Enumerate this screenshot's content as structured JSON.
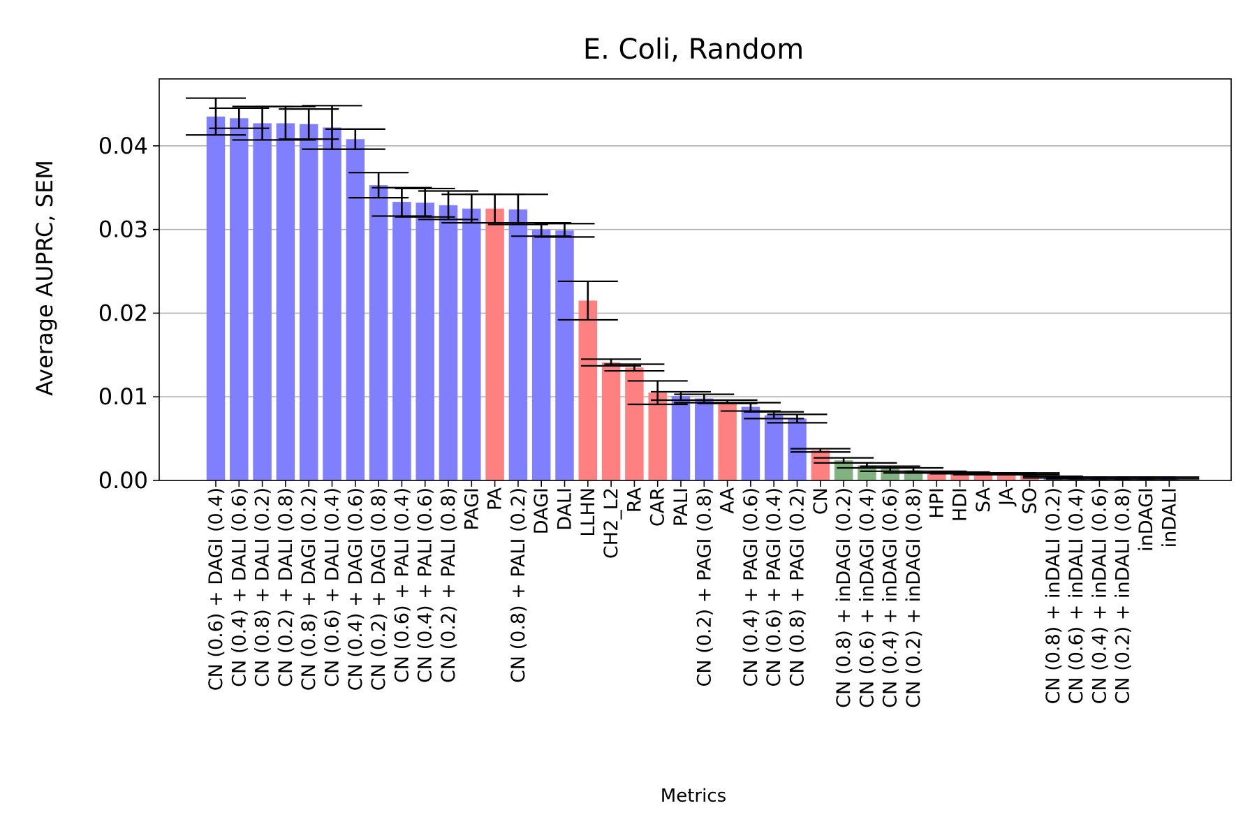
{
  "chart_data": {
    "type": "bar",
    "title": "E. Coli, Random",
    "xlabel": "Metrics",
    "ylabel": "Average AUPRC, SEM",
    "ylim": [
      0,
      0.048
    ],
    "yticks": [
      0.0,
      0.01,
      0.02,
      0.03,
      0.04
    ],
    "ytick_labels": [
      "0.00",
      "0.01",
      "0.02",
      "0.03",
      "0.04"
    ],
    "grid": "horizontal",
    "colors": {
      "blue": "#8080ff",
      "red": "#ff8080",
      "green": "#80b380"
    },
    "categories": [
      "CN (0.6) + DAGI (0.4)",
      "CN (0.4) + DALI (0.6)",
      "CN (0.8) + DALI (0.2)",
      "CN (0.2) + DALI (0.8)",
      "CN (0.8) + DAGI (0.2)",
      "CN (0.6) + DALI (0.4)",
      "CN (0.4) + DAGI (0.6)",
      "CN (0.2) + DAGI (0.8)",
      "CN (0.6) + PALI (0.4)",
      "CN (0.4) + PALI (0.6)",
      "CN (0.2) + PALI (0.8)",
      "PAGI",
      "PA",
      "CN (0.8) + PALI (0.2)",
      "DAGI",
      "DALI",
      "LLHN",
      "CH2_L2",
      "RA",
      "CAR",
      "PALI",
      "CN (0.2) + PAGI (0.8)",
      "AA",
      "CN (0.4) + PAGI (0.6)",
      "CN (0.6) + PAGI (0.4)",
      "CN (0.8) + PAGI (0.2)",
      "CN",
      "CN (0.8) + inDAGI (0.2)",
      "CN (0.6) + inDAGI (0.4)",
      "CN (0.4) + inDAGI (0.6)",
      "CN (0.2) + inDAGI (0.8)",
      "HPI",
      "HDI",
      "SA",
      "JA",
      "SO",
      "CN (0.8) + inDALI (0.2)",
      "CN (0.6) + inDALI (0.4)",
      "CN (0.4) + inDALI (0.6)",
      "CN (0.2) + inDALI (0.8)",
      "inDAGI",
      "inDALI"
    ],
    "values": [
      0.0435,
      0.0433,
      0.0427,
      0.0427,
      0.0426,
      0.0422,
      0.0408,
      0.0353,
      0.0333,
      0.0332,
      0.0329,
      0.0325,
      0.0325,
      0.0324,
      0.03,
      0.0299,
      0.0215,
      0.0141,
      0.0135,
      0.0105,
      0.0101,
      0.0098,
      0.0094,
      0.0088,
      0.0078,
      0.0074,
      0.0036,
      0.0024,
      0.0018,
      0.0014,
      0.0012,
      0.001,
      0.0009,
      0.0008,
      0.0008,
      0.0008,
      0.0004,
      0.0003,
      0.0003,
      0.0003,
      0.0003,
      0.0003
    ],
    "errors": [
      0.0022,
      0.0012,
      0.002,
      0.002,
      0.0018,
      0.0026,
      0.0012,
      0.0015,
      0.0017,
      0.0017,
      0.0017,
      0.0017,
      0.0017,
      0.0018,
      0.0008,
      0.0008,
      0.0023,
      0.0004,
      0.0004,
      0.0014,
      0.0005,
      0.0005,
      0.0002,
      0.0005,
      0.0004,
      0.0005,
      0.0002,
      0.0003,
      0.0003,
      0.0003,
      0.0003,
      0.0001,
      0.0001,
      0.0001,
      0.0001,
      0.0001,
      0.0001,
      0.0001,
      0.0001,
      0.0001,
      0.0001,
      0.0001
    ],
    "bar_colors": [
      "blue",
      "blue",
      "blue",
      "blue",
      "blue",
      "blue",
      "blue",
      "blue",
      "blue",
      "blue",
      "blue",
      "blue",
      "red",
      "blue",
      "blue",
      "blue",
      "red",
      "red",
      "red",
      "red",
      "blue",
      "blue",
      "red",
      "blue",
      "blue",
      "blue",
      "red",
      "green",
      "green",
      "green",
      "green",
      "red",
      "red",
      "red",
      "red",
      "red",
      "blue",
      "blue",
      "blue",
      "blue",
      "blue",
      "blue"
    ]
  }
}
